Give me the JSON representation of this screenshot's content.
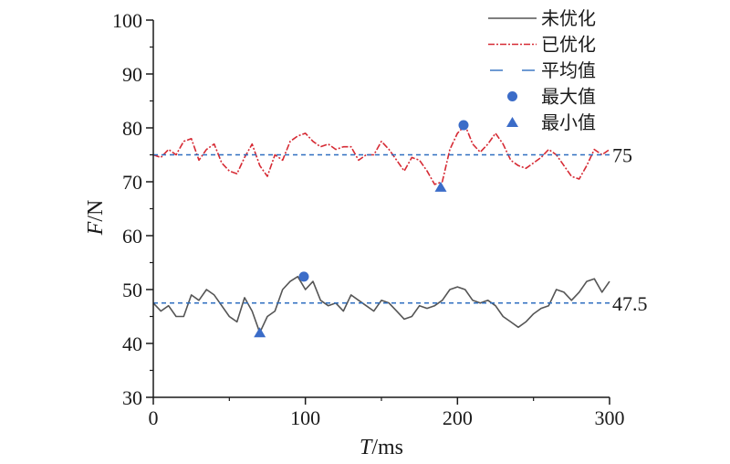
{
  "chart_data": {
    "type": "line",
    "xlabel_italic": "T",
    "xlabel_unit": "/ms",
    "ylabel_italic": "F",
    "ylabel_unit": "/N",
    "xlim": [
      0,
      300
    ],
    "ylim": [
      30,
      100
    ],
    "xticks": [
      0,
      100,
      200,
      300
    ],
    "yticks": [
      30,
      40,
      50,
      60,
      70,
      80,
      90,
      100
    ],
    "grid": false,
    "legend_position": "top-right",
    "legend": [
      "未优化",
      "已优化",
      "平均值",
      "最大值",
      "最小值"
    ],
    "colors": {
      "unoptimized": "#555555",
      "optimized": "#d62a34",
      "mean": "#2f6fc0",
      "marker": "#3b6cc8",
      "axis": "#1a1a1a"
    },
    "series": [
      {
        "name": "未优化",
        "style": "solid",
        "x": [
          0,
          5,
          10,
          15,
          20,
          25,
          30,
          35,
          40,
          45,
          50,
          55,
          60,
          65,
          70,
          75,
          80,
          85,
          90,
          95,
          100,
          105,
          110,
          115,
          120,
          125,
          130,
          135,
          140,
          145,
          150,
          155,
          160,
          165,
          170,
          175,
          180,
          185,
          190,
          195,
          200,
          205,
          210,
          215,
          220,
          225,
          230,
          235,
          240,
          245,
          250,
          255,
          260,
          265,
          270,
          275,
          280,
          285,
          290,
          295,
          300
        ],
        "y": [
          47.5,
          46,
          47,
          45,
          45,
          49,
          48,
          50,
          49,
          47,
          45,
          44,
          48.5,
          46,
          42,
          45,
          46,
          50,
          51.5,
          52.4,
          50,
          51.5,
          48,
          47,
          47.5,
          46,
          49,
          48,
          47,
          46,
          48,
          47.5,
          46,
          44.5,
          45,
          47,
          46.5,
          47,
          48,
          50,
          50.5,
          50,
          48,
          47.5,
          48,
          47,
          45,
          44,
          43,
          44,
          45.5,
          46.5,
          47,
          50,
          49.5,
          48,
          49.5,
          51.5,
          52,
          49.5,
          51.5
        ]
      },
      {
        "name": "已优化",
        "style": "dashdot",
        "x": [
          0,
          5,
          10,
          15,
          20,
          25,
          30,
          35,
          40,
          45,
          50,
          55,
          60,
          65,
          70,
          75,
          80,
          85,
          90,
          95,
          100,
          105,
          110,
          115,
          120,
          125,
          130,
          135,
          140,
          145,
          150,
          155,
          160,
          165,
          170,
          175,
          180,
          185,
          190,
          195,
          200,
          205,
          210,
          215,
          220,
          225,
          230,
          235,
          240,
          245,
          250,
          255,
          260,
          265,
          270,
          275,
          280,
          285,
          290,
          295,
          300
        ],
        "y": [
          75,
          74.5,
          76,
          75,
          77.5,
          78,
          74,
          76,
          77,
          73.5,
          72,
          71.5,
          74.5,
          77,
          73,
          71,
          75,
          74,
          77.5,
          78.5,
          79,
          77.5,
          76.5,
          77,
          76,
          76.5,
          76.5,
          74,
          75,
          75,
          77.5,
          76,
          74,
          72,
          74.5,
          74,
          72,
          69.5,
          70,
          76,
          79,
          80.5,
          77,
          75.5,
          77,
          79,
          77,
          74,
          73,
          72.5,
          73.5,
          74.5,
          76,
          75,
          73,
          71,
          70.5,
          73,
          76,
          75,
          76
        ]
      }
    ],
    "mean_lines": [
      {
        "name": "平均值",
        "value": 75,
        "label": "75"
      },
      {
        "name": "平均值",
        "value": 47.5,
        "label": "47.5"
      }
    ],
    "max_points": [
      {
        "series": "未优化",
        "x": 99,
        "y": 52.4
      },
      {
        "series": "已优化",
        "x": 204,
        "y": 80.5
      }
    ],
    "min_points": [
      {
        "series": "未优化",
        "x": 70,
        "y": 42
      },
      {
        "series": "已优化",
        "x": 189,
        "y": 69
      }
    ]
  }
}
